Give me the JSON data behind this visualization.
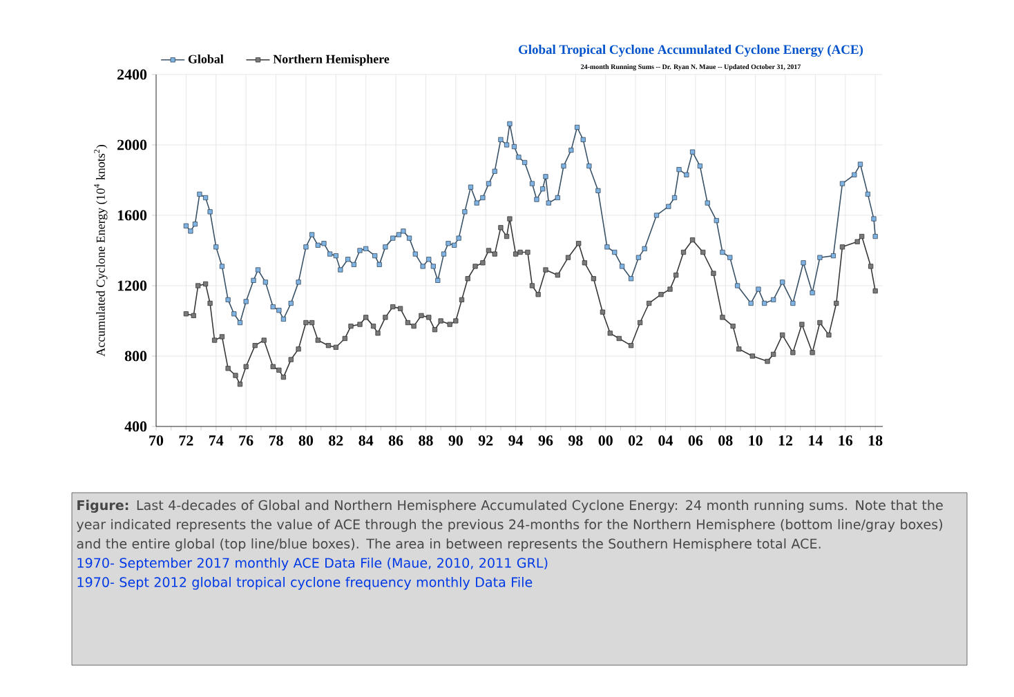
{
  "chart_data": {
    "type": "line",
    "title": "Global Tropical Cyclone Accumulated Cyclone Energy (ACE)",
    "subtitle": "24-month Running Sums -- Dr. Ryan N. Maue -- Updated October 31, 2017",
    "ylabel": "Accumulated Cyclone Energy (10$^{4}$ knots$^{2}$)",
    "xlim": [
      1970,
      2018.5
    ],
    "ylim": [
      400,
      2400
    ],
    "yticks": [
      400,
      800,
      1200,
      1600,
      2000,
      2400
    ],
    "xticks": [
      {
        "value": 1970,
        "label": "70"
      },
      {
        "value": 1972,
        "label": "72"
      },
      {
        "value": 1974,
        "label": "74"
      },
      {
        "value": 1976,
        "label": "76"
      },
      {
        "value": 1978,
        "label": "78"
      },
      {
        "value": 1980,
        "label": "80"
      },
      {
        "value": 1982,
        "label": "82"
      },
      {
        "value": 1984,
        "label": "84"
      },
      {
        "value": 1986,
        "label": "86"
      },
      {
        "value": 1988,
        "label": "88"
      },
      {
        "value": 1990,
        "label": "90"
      },
      {
        "value": 1992,
        "label": "92"
      },
      {
        "value": 1994,
        "label": "94"
      },
      {
        "value": 1996,
        "label": "96"
      },
      {
        "value": 1998,
        "label": "98"
      },
      {
        "value": 2000,
        "label": "00"
      },
      {
        "value": 2002,
        "label": "02"
      },
      {
        "value": 2004,
        "label": "04"
      },
      {
        "value": 2006,
        "label": "06"
      },
      {
        "value": 2008,
        "label": "08"
      },
      {
        "value": 2010,
        "label": "10"
      },
      {
        "value": 2012,
        "label": "12"
      },
      {
        "value": 2014,
        "label": "14"
      },
      {
        "value": 2016,
        "label": "16"
      },
      {
        "value": 2018,
        "label": "18"
      }
    ],
    "grid": true,
    "legend": "top left",
    "marker": "square",
    "line_style": "solid",
    "series": [
      {
        "name": "Global",
        "color": "#7fb3e3",
        "x": [
          1972.0,
          1972.3,
          1972.6,
          1972.9,
          1973.3,
          1973.6,
          1974.0,
          1974.4,
          1974.8,
          1975.2,
          1975.6,
          1976.0,
          1976.5,
          1976.8,
          1977.3,
          1977.8,
          1978.2,
          1978.5,
          1979.0,
          1979.5,
          1980.0,
          1980.4,
          1980.8,
          1981.2,
          1981.6,
          1982.0,
          1982.3,
          1982.8,
          1983.2,
          1983.6,
          1984.0,
          1984.6,
          1984.9,
          1985.3,
          1985.8,
          1986.2,
          1986.5,
          1986.9,
          1987.3,
          1987.8,
          1988.2,
          1988.5,
          1988.8,
          1989.2,
          1989.5,
          1989.9,
          1990.2,
          1990.6,
          1991.0,
          1991.4,
          1991.8,
          1992.2,
          1992.6,
          1993.0,
          1993.4,
          1993.6,
          1993.9,
          1994.2,
          1994.6,
          1995.1,
          1995.4,
          1995.8,
          1996.0,
          1996.2,
          1996.8,
          1997.2,
          1997.7,
          1998.1,
          1998.5,
          1998.9,
          1999.5,
          2000.1,
          2000.6,
          2001.1,
          2001.7,
          2002.2,
          2002.6,
          2003.4,
          2004.2,
          2004.6,
          2004.9,
          2005.4,
          2005.8,
          2006.3,
          2006.8,
          2007.4,
          2007.8,
          2008.3,
          2008.8,
          2009.7,
          2010.2,
          2010.6,
          2011.2,
          2011.8,
          2012.5,
          2013.2,
          2013.8,
          2014.3,
          2015.2,
          2015.8,
          2016.6,
          2017.0,
          2017.5,
          2017.9,
          2018.0
        ],
        "values": [
          1540,
          1510,
          1550,
          1720,
          1700,
          1620,
          1420,
          1310,
          1120,
          1040,
          990,
          1110,
          1230,
          1290,
          1220,
          1080,
          1060,
          1010,
          1100,
          1220,
          1420,
          1490,
          1430,
          1440,
          1380,
          1370,
          1290,
          1350,
          1320,
          1400,
          1410,
          1370,
          1320,
          1420,
          1470,
          1490,
          1510,
          1470,
          1380,
          1310,
          1350,
          1310,
          1230,
          1380,
          1440,
          1430,
          1470,
          1620,
          1760,
          1670,
          1700,
          1780,
          1850,
          2030,
          2000,
          2120,
          1990,
          1930,
          1900,
          1780,
          1690,
          1750,
          1820,
          1670,
          1700,
          1880,
          1970,
          2100,
          2030,
          1880,
          1740,
          1420,
          1390,
          1310,
          1240,
          1360,
          1410,
          1600,
          1650,
          1700,
          1860,
          1830,
          1960,
          1880,
          1670,
          1570,
          1390,
          1360,
          1200,
          1100,
          1180,
          1100,
          1120,
          1220,
          1100,
          1330,
          1160,
          1360,
          1370,
          1780,
          1830,
          1890,
          1720,
          1580,
          1480
        ]
      },
      {
        "name": "Northern Hemisphere",
        "color": "#7a7a7a",
        "x": [
          1972.0,
          1972.5,
          1972.8,
          1973.3,
          1973.6,
          1973.9,
          1974.4,
          1974.8,
          1975.3,
          1975.6,
          1976.0,
          1976.6,
          1977.2,
          1977.8,
          1978.2,
          1978.5,
          1979.0,
          1979.5,
          1980.0,
          1980.4,
          1980.8,
          1981.5,
          1982.0,
          1982.6,
          1983.0,
          1983.6,
          1984.0,
          1984.5,
          1984.8,
          1985.3,
          1985.8,
          1986.3,
          1986.8,
          1987.2,
          1987.7,
          1988.2,
          1988.6,
          1989.0,
          1989.6,
          1990.0,
          1990.4,
          1990.8,
          1991.3,
          1991.8,
          1992.2,
          1992.6,
          1993.0,
          1993.4,
          1993.6,
          1994.0,
          1994.3,
          1994.8,
          1995.1,
          1995.5,
          1996.0,
          1996.8,
          1997.5,
          1998.2,
          1998.6,
          1999.2,
          1999.8,
          2000.3,
          2000.9,
          2001.7,
          2002.3,
          2002.9,
          2003.7,
          2004.3,
          2004.7,
          2005.2,
          2005.8,
          2006.5,
          2007.2,
          2007.8,
          2008.5,
          2008.9,
          2009.8,
          2010.8,
          2011.2,
          2011.8,
          2012.5,
          2013.1,
          2013.8,
          2014.3,
          2014.9,
          2015.4,
          2015.8,
          2016.8,
          2017.1,
          2017.7,
          2018.0
        ],
        "values": [
          1040,
          1030,
          1200,
          1210,
          1100,
          890,
          910,
          730,
          690,
          640,
          740,
          860,
          890,
          740,
          720,
          680,
          780,
          840,
          990,
          990,
          890,
          860,
          850,
          900,
          970,
          980,
          1020,
          970,
          930,
          1020,
          1080,
          1070,
          990,
          970,
          1030,
          1020,
          950,
          1000,
          980,
          1000,
          1120,
          1240,
          1310,
          1330,
          1400,
          1380,
          1530,
          1480,
          1580,
          1380,
          1390,
          1390,
          1200,
          1150,
          1290,
          1260,
          1360,
          1440,
          1330,
          1240,
          1050,
          930,
          900,
          860,
          990,
          1100,
          1150,
          1180,
          1260,
          1390,
          1460,
          1390,
          1270,
          1020,
          970,
          840,
          800,
          770,
          810,
          920,
          820,
          980,
          820,
          990,
          920,
          1100,
          1420,
          1450,
          1480,
          1310,
          1170
        ]
      }
    ],
    "annotations": [
      "**Figure:** Last 4-decades of Global and Northern Hemisphere Accumulated Cyclone Energy: 24 month running sums. Note that the year indicated represents the value of ACE through the previous 24-months for the Northern Hemisphere (bottom line/gray boxes) and the entire global (top line/blue boxes). The area in between represents the Southern Hemisphere total ACE.",
      "1970- September 2017 monthly ACE Data File (Maue, 2010, 2011 GRL)",
      "1970- Sept 2012 global tropical cyclone frequency monthly Data File"
    ]
  }
}
